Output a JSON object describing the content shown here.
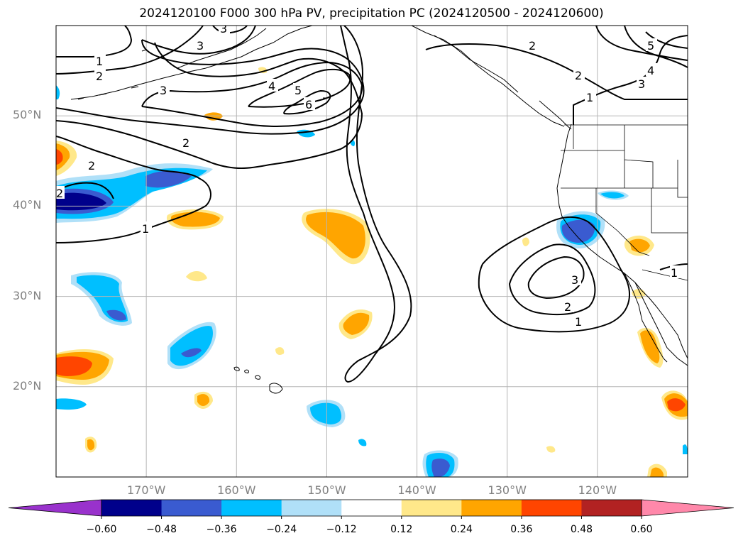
{
  "title": "2024120100 F000 300 hPa PV, precipitation PC (2024120500 - 2024120600)",
  "map": {
    "lon_range": [
      -180,
      -110
    ],
    "lat_range": [
      10,
      60
    ],
    "lat_ticks": [
      {
        "value": 50,
        "label": "50°N"
      },
      {
        "value": 40,
        "label": "40°N"
      },
      {
        "value": 30,
        "label": "30°N"
      },
      {
        "value": 20,
        "label": "20°N"
      }
    ],
    "lon_ticks": [
      {
        "value": -170,
        "label": "170°W"
      },
      {
        "value": -160,
        "label": "160°W"
      },
      {
        "value": -150,
        "label": "150°W"
      },
      {
        "value": -140,
        "label": "140°W"
      },
      {
        "value": -130,
        "label": "130°W"
      },
      {
        "value": -120,
        "label": "120°W"
      }
    ],
    "grid": true,
    "pv_contour_levels": [
      1,
      2,
      3,
      4,
      5,
      6
    ],
    "pv_contour_color": "#000000"
  },
  "colorbar": {
    "ticks": [
      "−0.60",
      "−0.48",
      "−0.36",
      "−0.24",
      "−0.12",
      "0.12",
      "0.24",
      "0.36",
      "0.48",
      "0.60"
    ],
    "colors": [
      "#9932cc",
      "#00008b",
      "#3a5bd0",
      "#00bfff",
      "#b0e0f8",
      "#ffffff",
      "#ffe88a",
      "#ffa500",
      "#ff4500",
      "#b22222",
      "#ff88aa"
    ]
  }
}
